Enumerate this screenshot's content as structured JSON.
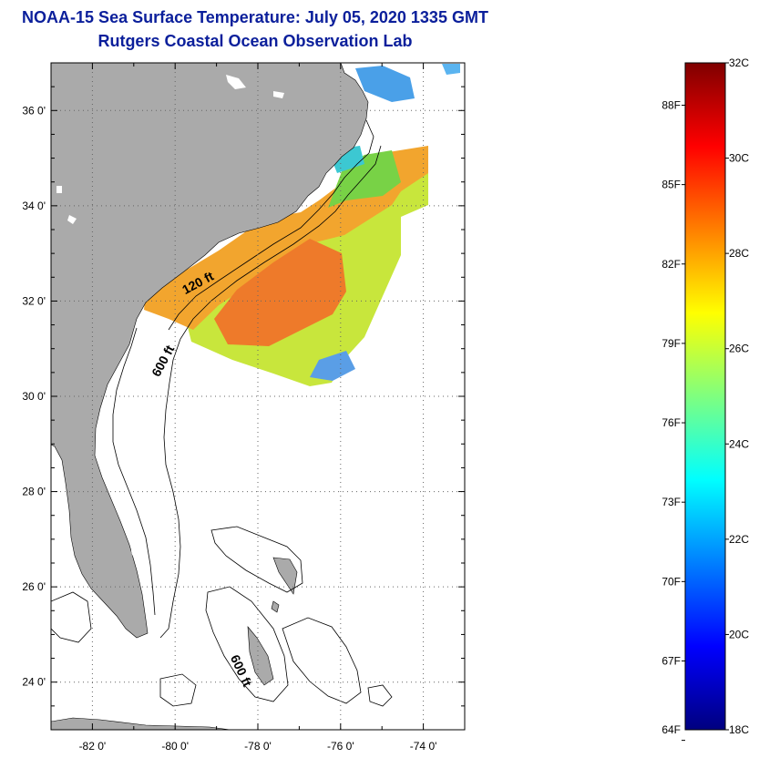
{
  "title": {
    "line1": "NOAA-15 Sea Surface Temperature:  July 05, 2020 1335 GMT",
    "line2": "Rutgers Coastal Ocean Observation Lab"
  },
  "colors": {
    "title": "#0b1f9b",
    "land": "#aaaaaa",
    "ocean": "#ffffff",
    "grid": "#666666"
  },
  "map": {
    "lon_range": [
      -83,
      -73
    ],
    "lat_range": [
      23,
      37
    ],
    "lon_ticks": [
      {
        "value": -82,
        "label": "-82 0'"
      },
      {
        "value": -80,
        "label": "-80 0'"
      },
      {
        "value": -78,
        "label": "-78 0'"
      },
      {
        "value": -76,
        "label": "-76 0'"
      },
      {
        "value": -74,
        "label": "-74 0'"
      }
    ],
    "lat_ticks": [
      {
        "value": 36,
        "label": "36 0'"
      },
      {
        "value": 34,
        "label": "34 0'"
      },
      {
        "value": 32,
        "label": "32 0'"
      },
      {
        "value": 30,
        "label": "30 0'"
      },
      {
        "value": 28,
        "label": "28 0'"
      },
      {
        "value": 26,
        "label": "26 0'"
      },
      {
        "value": 24,
        "label": "24 0'"
      }
    ],
    "grid": true,
    "contour_labels": [
      {
        "text": "120 ft",
        "lon": -79.4,
        "lat": 32.3,
        "angle": -28
      },
      {
        "text": "600 ft",
        "lon": -80.2,
        "lat": 30.7,
        "angle": -62
      },
      {
        "text": "600 ft",
        "lon": -78.5,
        "lat": 24.2,
        "angle": 65
      }
    ]
  },
  "colorbar": {
    "range_c": [
      18,
      32
    ],
    "celsius_labels": [
      {
        "value": 32,
        "label": "32C"
      },
      {
        "value": 30,
        "label": "30C"
      },
      {
        "value": 28,
        "label": "28C"
      },
      {
        "value": 26,
        "label": "26C"
      },
      {
        "value": 24,
        "label": "24C"
      },
      {
        "value": 22,
        "label": "22C"
      },
      {
        "value": 20,
        "label": "20C"
      },
      {
        "value": 18,
        "label": "18C"
      }
    ],
    "fahrenheit_labels": [
      {
        "value": 88,
        "label": "88F"
      },
      {
        "value": 85,
        "label": "85F"
      },
      {
        "value": 82,
        "label": "82F"
      },
      {
        "value": 79,
        "label": "79F"
      },
      {
        "value": 76,
        "label": "76F"
      },
      {
        "value": 73,
        "label": "73F"
      },
      {
        "value": 70,
        "label": "70F"
      },
      {
        "value": 67,
        "label": "67F"
      },
      {
        "value": 64,
        "label": "64F"
      }
    ],
    "gradient": [
      "#00007f",
      "#0000ff",
      "#007fff",
      "#00ffff",
      "#7fff7f",
      "#ffff00",
      "#ff7f00",
      "#ff0000",
      "#7f0000"
    ]
  }
}
